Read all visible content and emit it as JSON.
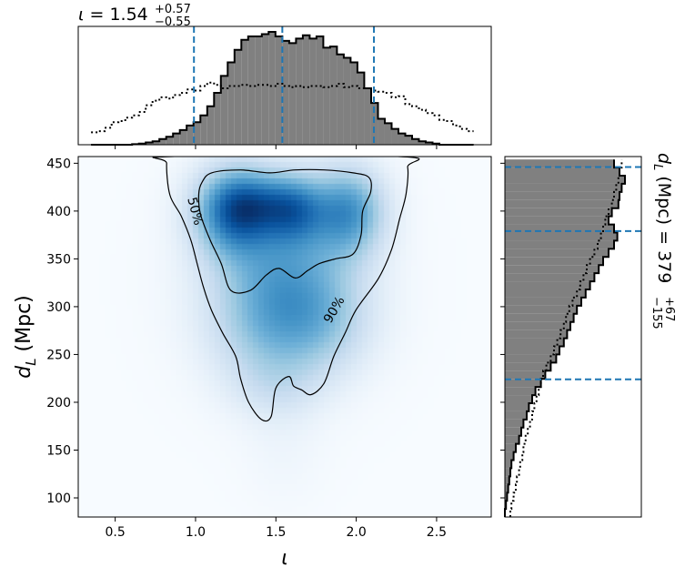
{
  "chart_data": {
    "type": "corner",
    "top_title": {
      "symbol": "ι",
      "equals": " = ",
      "median": "1.54",
      "upper": "+0.57",
      "lower": "−0.55"
    },
    "right_title": {
      "var_main": "d",
      "var_sub": "L",
      "unit": " (Mpc) = ",
      "median": "379",
      "upper": "+67",
      "lower": "−155"
    },
    "main": {
      "type": "heatmap",
      "xlabel": "ι",
      "ylabel_main": "d",
      "ylabel_sub": "L",
      "ylabel_unit": " (Mpc)",
      "xlim": [
        0.27,
        2.84
      ],
      "ylim": [
        80,
        457
      ],
      "xticks": [
        0.5,
        1.0,
        1.5,
        2.0,
        2.5
      ],
      "xtick_labels": [
        "0.5",
        "1.0",
        "1.5",
        "2.0",
        "2.5"
      ],
      "yticks": [
        100,
        150,
        200,
        250,
        300,
        350,
        400,
        450
      ],
      "ytick_labels": [
        "100",
        "150",
        "200",
        "250",
        "300",
        "350",
        "400",
        "450"
      ],
      "colormap": "Blues",
      "density_blobs": [
        {
          "x": 1.25,
          "y": 400,
          "sx": 0.18,
          "sy": 32,
          "w": 0.95
        },
        {
          "x": 1.62,
          "y": 400,
          "sx": 0.13,
          "sy": 26,
          "w": 0.55
        },
        {
          "x": 1.95,
          "y": 400,
          "sx": 0.16,
          "sy": 32,
          "w": 0.75
        },
        {
          "x": 1.45,
          "y": 410,
          "sx": 0.2,
          "sy": 22,
          "w": 0.35
        },
        {
          "x": 1.55,
          "y": 330,
          "sx": 0.3,
          "sy": 45,
          "w": 0.55
        },
        {
          "x": 1.45,
          "y": 270,
          "sx": 0.25,
          "sy": 40,
          "w": 0.32
        },
        {
          "x": 1.8,
          "y": 280,
          "sx": 0.22,
          "sy": 38,
          "w": 0.28
        },
        {
          "x": 1.5,
          "y": 215,
          "sx": 0.2,
          "sy": 25,
          "w": 0.15
        },
        {
          "x": 1.55,
          "y": 150,
          "sx": 0.18,
          "sy": 40,
          "w": 0.05
        },
        {
          "x": 1.55,
          "y": 330,
          "sx": 0.45,
          "sy": 90,
          "w": 0.07
        }
      ],
      "contours": [
        {
          "label": "90%",
          "label_pos": [
            1.86,
            297
          ],
          "label_rotation": -60,
          "points": [
            [
              0.82,
              450
            ],
            [
              0.84,
              417
            ],
            [
              0.91,
              395
            ],
            [
              0.97,
              370
            ],
            [
              1.01,
              345
            ],
            [
              1.05,
              320
            ],
            [
              1.1,
              296
            ],
            [
              1.17,
              272
            ],
            [
              1.25,
              248
            ],
            [
              1.28,
              225
            ],
            [
              1.33,
              200
            ],
            [
              1.41,
              182
            ],
            [
              1.47,
              185
            ],
            [
              1.5,
              215
            ],
            [
              1.58,
              227
            ],
            [
              1.61,
              217
            ],
            [
              1.66,
              213
            ],
            [
              1.72,
              208
            ],
            [
              1.8,
              220
            ],
            [
              1.86,
              248
            ],
            [
              1.93,
              272
            ],
            [
              2.0,
              297
            ],
            [
              2.14,
              330
            ],
            [
              2.22,
              360
            ],
            [
              2.27,
              392
            ],
            [
              2.31,
              418
            ],
            [
              2.32,
              446
            ],
            [
              2.27,
              457
            ],
            [
              0.85,
              457
            ]
          ]
        },
        {
          "label": "50%",
          "label_pos": [
            1.0,
            400
          ],
          "label_rotation": 75,
          "points": [
            [
              1.04,
              430
            ],
            [
              1.1,
              440
            ],
            [
              1.28,
              443
            ],
            [
              1.46,
              440
            ],
            [
              1.62,
              443
            ],
            [
              1.8,
              443
            ],
            [
              1.98,
              440
            ],
            [
              2.08,
              435
            ],
            [
              2.09,
              420
            ],
            [
              2.04,
              400
            ],
            [
              2.03,
              375
            ],
            [
              1.98,
              355
            ],
            [
              1.87,
              350
            ],
            [
              1.77,
              345
            ],
            [
              1.7,
              338
            ],
            [
              1.62,
              330
            ],
            [
              1.52,
              340
            ],
            [
              1.44,
              333
            ],
            [
              1.34,
              317
            ],
            [
              1.22,
              317
            ],
            [
              1.16,
              345
            ],
            [
              1.09,
              370
            ],
            [
              1.03,
              397
            ],
            [
              1.02,
              418
            ]
          ]
        }
      ]
    },
    "top_marginal": {
      "bin_edges_start": 0.35,
      "bin_width": 0.0425,
      "posterior_heights": [
        0,
        0,
        0,
        0,
        0,
        0,
        0.005,
        0.01,
        0.02,
        0.03,
        0.05,
        0.07,
        0.1,
        0.13,
        0.17,
        0.2,
        0.26,
        0.34,
        0.46,
        0.61,
        0.73,
        0.84,
        0.93,
        0.96,
        0.96,
        0.98,
        1.0,
        0.96,
        0.92,
        0.9,
        0.94,
        0.97,
        0.94,
        0.96,
        0.86,
        0.87,
        0.8,
        0.77,
        0.73,
        0.64,
        0.5,
        0.37,
        0.23,
        0.19,
        0.14,
        0.1,
        0.08,
        0.05,
        0.03,
        0.02,
        0.01,
        0,
        0,
        0,
        0,
        0
      ],
      "prior_heights": [
        0.11,
        0.12,
        0.15,
        0.2,
        0.21,
        0.24,
        0.26,
        0.29,
        0.35,
        0.39,
        0.42,
        0.41,
        0.44,
        0.46,
        0.49,
        0.48,
        0.52,
        0.55,
        0.53,
        0.5,
        0.52,
        0.52,
        0.53,
        0.52,
        0.53,
        0.53,
        0.52,
        0.54,
        0.52,
        0.51,
        0.52,
        0.51,
        0.52,
        0.52,
        0.51,
        0.52,
        0.54,
        0.51,
        0.52,
        0.5,
        0.5,
        0.48,
        0.47,
        0.46,
        0.42,
        0.43,
        0.36,
        0.34,
        0.31,
        0.28,
        0.26,
        0.22,
        0.21,
        0.17,
        0.14,
        0.12
      ],
      "quantile_lines": [
        0.99,
        1.54,
        2.11
      ]
    },
    "right_marginal": {
      "bin_edges_start": 80,
      "bin_width": 8.5,
      "posterior_widths": [
        0,
        0.01,
        0.02,
        0.03,
        0.04,
        0.05,
        0.06,
        0.08,
        0.1,
        0.13,
        0.15,
        0.17,
        0.2,
        0.22,
        0.25,
        0.28,
        0.33,
        0.37,
        0.42,
        0.47,
        0.5,
        0.54,
        0.57,
        0.6,
        0.63,
        0.66,
        0.7,
        0.74,
        0.78,
        0.82,
        0.86,
        0.9,
        0.95,
        1.0,
        1.03,
        1.0,
        0.95,
        0.98,
        1.04,
        1.05,
        1.07,
        1.1,
        1.05,
        1.0
      ],
      "prior_widths": [
        0.05,
        0.06,
        0.08,
        0.1,
        0.11,
        0.13,
        0.14,
        0.16,
        0.17,
        0.19,
        0.21,
        0.23,
        0.25,
        0.27,
        0.29,
        0.31,
        0.33,
        0.35,
        0.38,
        0.42,
        0.45,
        0.48,
        0.51,
        0.54,
        0.56,
        0.59,
        0.62,
        0.66,
        0.69,
        0.72,
        0.75,
        0.78,
        0.82,
        0.85,
        0.88,
        0.9,
        0.92,
        0.95,
        0.98,
        1.0,
        1.02,
        1.04,
        1.05,
        1.07
      ],
      "quantile_lines": [
        224,
        379,
        446
      ]
    },
    "colors": {
      "hist_fill": "#808080",
      "hist_edge": "#000000",
      "quantile": "#1f77b4",
      "contour": "#000000"
    }
  }
}
